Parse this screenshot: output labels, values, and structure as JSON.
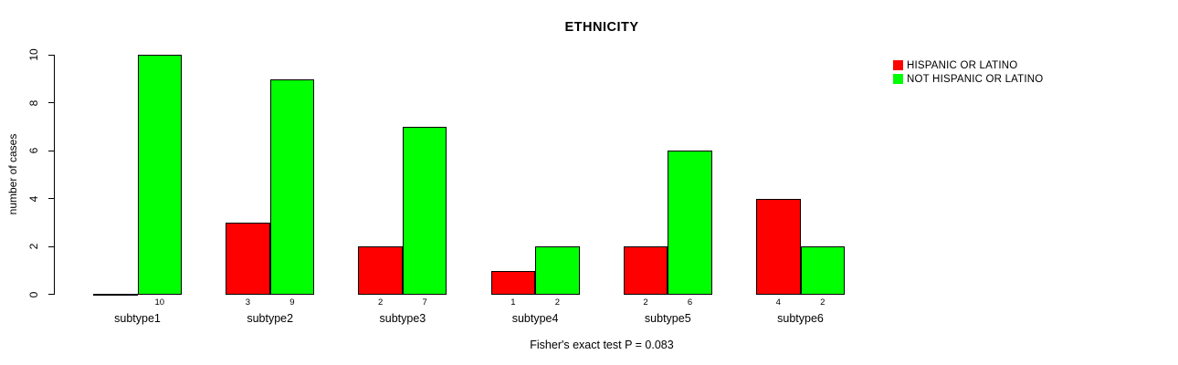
{
  "title": "ETHNICITY",
  "footer": "Fisher's exact test P = 0.083",
  "chart_data": {
    "type": "bar",
    "title": "ETHNICITY",
    "xlabel": "",
    "ylabel": "number of cases",
    "ylim": [
      0,
      10
    ],
    "yticks": [
      0,
      2,
      4,
      6,
      8,
      10
    ],
    "grid": false,
    "legend_position": "top-right",
    "categories": [
      "subtype1",
      "subtype2",
      "subtype3",
      "subtype4",
      "subtype5",
      "subtype6"
    ],
    "series": [
      {
        "name": "HISPANIC OR LATINO",
        "color": "#FF0000",
        "values": [
          0,
          3,
          2,
          1,
          2,
          4
        ]
      },
      {
        "name": "NOT HISPANIC OR LATINO",
        "color": "#00FF00",
        "values": [
          10,
          9,
          7,
          2,
          6,
          2
        ]
      }
    ],
    "bar_value_labels": [
      [
        null,
        "10"
      ],
      [
        "3",
        "9"
      ],
      [
        "2",
        "7"
      ],
      [
        "1",
        "2"
      ],
      [
        "2",
        "6"
      ],
      [
        "4",
        "2"
      ]
    ],
    "annotation": "Fisher's exact test P = 0.083"
  }
}
